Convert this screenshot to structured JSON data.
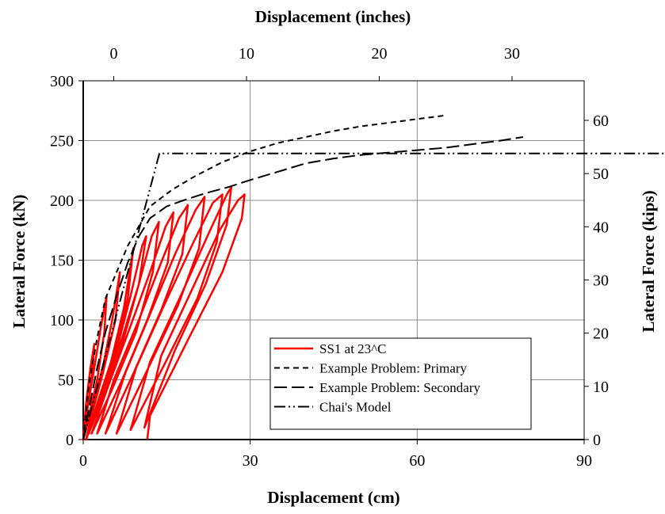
{
  "chart_data": {
    "type": "line",
    "axes": {
      "bottom": {
        "label": "Displacement (cm)",
        "range": [
          0,
          90
        ],
        "ticks": [
          "0",
          "30",
          "60",
          "90"
        ]
      },
      "top": {
        "label": "Displacement (inches)",
        "range": [
          -2.3,
          35.433
        ],
        "ticks": [
          "0",
          "10",
          "20",
          "30"
        ]
      },
      "left": {
        "label": "Lateral Force (kN)",
        "range": [
          0,
          300
        ],
        "ticks": [
          "0",
          "50",
          "100",
          "150",
          "200",
          "250",
          "300"
        ]
      },
      "right": {
        "label": "Lateral Force (kips)",
        "range": [
          0,
          67.44
        ],
        "ticks": [
          "0",
          "10",
          "20",
          "30",
          "40",
          "50",
          "60"
        ]
      }
    },
    "grid": true,
    "legend_position": "bottom-right",
    "series": [
      {
        "name": "SS1 at 23^C",
        "color": "#ff0000",
        "style": "solid",
        "x_unit": "cm",
        "y_unit": "kN",
        "x": [
          0,
          0.5,
          1.3,
          2.0,
          1.6,
          0.6,
          0,
          0.9,
          2.0,
          3.2,
          4.2,
          3.8,
          2.5,
          0.8,
          0,
          1.5,
          3.5,
          5.2,
          6.6,
          5.8,
          3.5,
          1.5,
          0.5,
          2.5,
          5.0,
          7.3,
          9.0,
          8.0,
          5.5,
          2.5,
          0.5,
          3.0,
          6.0,
          8.5,
          10.6,
          11.3,
          10.0,
          7.0,
          3.5,
          1.0,
          3.5,
          7.0,
          10.0,
          12.3,
          13.6,
          12.5,
          9.5,
          5.0,
          1.5,
          4.5,
          8.5,
          12.0,
          14.8,
          16.2,
          15.2,
          11.5,
          7.0,
          2.5,
          5.5,
          10.0,
          14.0,
          17.2,
          18.8,
          17.8,
          14.0,
          9.0,
          4.0,
          7.5,
          12.0,
          16.5,
          20.2,
          21.8,
          20.8,
          17.0,
          11.5,
          6.0,
          9.5,
          14.5,
          19.5,
          23.3,
          25.0,
          24.0,
          20.5,
          14.5,
          8.5,
          12.0,
          17.5,
          22.5,
          25.8,
          26.6,
          25.8,
          22.0,
          16.5,
          11.0,
          14.0,
          19.5,
          24.5,
          27.8,
          29.0,
          28.5,
          25.0,
          19.0,
          12.0,
          11.5
        ],
        "y": [
          0,
          30,
          60,
          80,
          55,
          20,
          0,
          30,
          60,
          95,
          120,
          90,
          50,
          15,
          0,
          25,
          60,
          100,
          140,
          100,
          55,
          20,
          0,
          30,
          65,
          110,
          160,
          118,
          70,
          25,
          0,
          35,
          75,
          120,
          162,
          170,
          130,
          80,
          35,
          5,
          40,
          85,
          130,
          170,
          182,
          140,
          90,
          40,
          5,
          45,
          95,
          140,
          178,
          190,
          148,
          100,
          50,
          5,
          50,
          100,
          148,
          185,
          196,
          155,
          108,
          55,
          5,
          55,
          105,
          155,
          192,
          203,
          160,
          112,
          58,
          5,
          60,
          112,
          162,
          198,
          205,
          165,
          118,
          62,
          8,
          65,
          120,
          172,
          205,
          211,
          180,
          130,
          75,
          10,
          70,
          125,
          175,
          200,
          205,
          185,
          140,
          85,
          20,
          0
        ]
      },
      {
        "name": "Example Problem: Primary",
        "color": "#000000",
        "style": "short-dash",
        "x_unit": "cm",
        "y_unit": "kN",
        "x": [
          0,
          1,
          2.5,
          4,
          6,
          8,
          12,
          16,
          20,
          25,
          30,
          35,
          40,
          45,
          50,
          55,
          60,
          65
        ],
        "y": [
          0,
          45,
          85,
          118,
          140,
          162,
          195,
          209,
          220,
          232,
          241,
          248,
          253,
          258,
          262,
          265,
          268,
          271
        ]
      },
      {
        "name": "Example Problem: Secondary",
        "color": "#000000",
        "style": "long-dash",
        "x_unit": "cm",
        "y_unit": "kN",
        "x": [
          0,
          1,
          2.5,
          4,
          6,
          8,
          10,
          12,
          15,
          18,
          22,
          26,
          30,
          35,
          40,
          45,
          50,
          55,
          60,
          65,
          70,
          75,
          79
        ],
        "y": [
          0,
          25,
          60,
          90,
          120,
          148,
          170,
          185,
          195,
          200,
          206,
          211,
          217,
          224,
          231,
          235,
          238,
          240,
          242,
          244,
          247,
          250,
          253
        ]
      },
      {
        "name": "Chai's Model",
        "color": "#000000",
        "style": "dash-dot-dot",
        "x_unit": "inches",
        "y_unit": "kips",
        "x": [
          0,
          5.39,
          53.78
        ],
        "y": [
          0,
          53.8,
          53.8
        ]
      }
    ]
  }
}
